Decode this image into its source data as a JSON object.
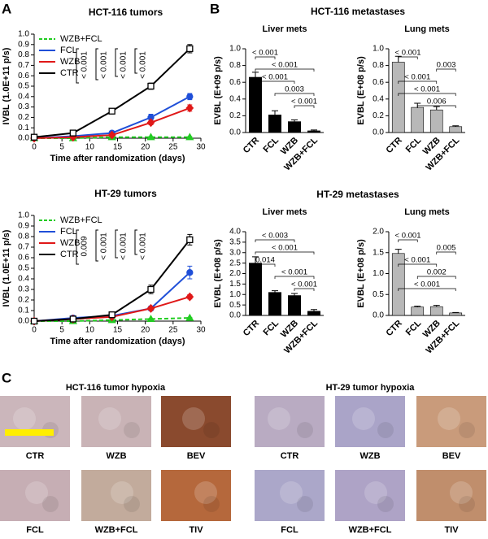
{
  "panel_labels": [
    "A",
    "B",
    "C"
  ],
  "section_titles": [
    "HCT-116 metastases",
    "HT-29 metastases"
  ],
  "chart_data": [
    {
      "type": "line",
      "title": "HCT-116 tumors",
      "xlabel": "Time after randomization (days)",
      "ylabel": "IVBL (1.0E+11 p/s)",
      "x": [
        0,
        7,
        14,
        21,
        28
      ],
      "xlim": [
        0,
        30
      ],
      "xticks": [
        0,
        5,
        10,
        15,
        20,
        25,
        30
      ],
      "ylim": [
        0,
        1.0
      ],
      "yticks": [
        {
          "value": 0,
          "label": "0.0"
        },
        0.1,
        0.2,
        0.3,
        0.4,
        0.5,
        0.6,
        0.7,
        0.8,
        0.9,
        {
          "value": 1.0,
          "label": "1.0"
        }
      ],
      "series": [
        {
          "name": "WZB+FCL",
          "color": "#22cc22",
          "marker": "triangle",
          "dashed": true,
          "values": [
            0,
            0,
            0.01,
            0.01,
            0.01
          ],
          "errors": [
            0,
            0,
            0.005,
            0.005,
            0.005
          ]
        },
        {
          "name": "FCL",
          "color": "#1f4fd8",
          "marker": "circle",
          "values": [
            0,
            0.02,
            0.05,
            0.2,
            0.4
          ],
          "errors": [
            0,
            0.005,
            0.01,
            0.03,
            0.03
          ]
        },
        {
          "name": "WZB",
          "color": "#e01818",
          "marker": "diamond",
          "values": [
            0,
            0.01,
            0.03,
            0.15,
            0.29
          ],
          "errors": [
            0,
            0.005,
            0.01,
            0.02,
            0.03
          ]
        },
        {
          "name": "CTR",
          "color": "#000000",
          "marker": "square",
          "hollow": true,
          "values": [
            0.01,
            0.05,
            0.26,
            0.5,
            0.86
          ],
          "errors": [
            0,
            0.01,
            0.02,
            0.03,
            0.04
          ]
        }
      ],
      "annotations": [
        "< 0.001",
        "< 0.001",
        "< 0.001",
        "< 0.001"
      ]
    },
    {
      "type": "line",
      "title": "HT-29 tumors",
      "xlabel": "Time after randomization (days)",
      "ylabel": "IVBL (1.0E+11 p/s)",
      "x": [
        0,
        7,
        14,
        21,
        28
      ],
      "xlim": [
        0,
        30
      ],
      "xticks": [
        0,
        5,
        10,
        15,
        20,
        25,
        30
      ],
      "ylim": [
        0,
        1.0
      ],
      "yticks": [
        {
          "value": 0,
          "label": "0.0"
        },
        0.1,
        0.2,
        0.3,
        0.4,
        0.5,
        0.6,
        0.7,
        0.8,
        0.9,
        {
          "value": 1.0,
          "label": "1.0"
        }
      ],
      "series": [
        {
          "name": "WZB+FCL",
          "color": "#22cc22",
          "marker": "triangle",
          "dashed": true,
          "values": [
            0,
            0,
            0.01,
            0.02,
            0.03
          ],
          "errors": [
            0,
            0,
            0.005,
            0.005,
            0.005
          ]
        },
        {
          "name": "FCL",
          "color": "#1f4fd8",
          "marker": "circle",
          "values": [
            0,
            0.03,
            0.05,
            0.12,
            0.46
          ],
          "errors": [
            0,
            0.005,
            0.01,
            0.02,
            0.06
          ]
        },
        {
          "name": "WZB",
          "color": "#e01818",
          "marker": "diamond",
          "values": [
            0,
            0.02,
            0.04,
            0.12,
            0.23
          ],
          "errors": [
            0,
            0.005,
            0.01,
            0.01,
            0.02
          ]
        },
        {
          "name": "CTR",
          "color": "#000000",
          "marker": "square",
          "hollow": true,
          "values": [
            0,
            0.02,
            0.06,
            0.3,
            0.77
          ],
          "errors": [
            0,
            0.005,
            0.01,
            0.04,
            0.05
          ]
        }
      ],
      "annotations": [
        "0.009",
        "< 0.001",
        "< 0.001",
        "< 0.001"
      ]
    },
    {
      "type": "bar",
      "title": "Liver mets",
      "ylabel": "EVBL (E+09 p/s)",
      "color": "#000000",
      "categories": [
        "CTR",
        "FCL",
        "WZB",
        "WZB+FCL"
      ],
      "values": [
        0.66,
        0.21,
        0.13,
        0.02
      ],
      "errors": [
        0.06,
        0.05,
        0.02,
        0.01
      ],
      "ylim": [
        0,
        1.0
      ],
      "yticks": [
        {
          "value": 0,
          "label": "0.0"
        },
        0.2,
        0.4,
        0.6,
        0.8,
        {
          "value": 1.0,
          "label": "1.0"
        }
      ],
      "comparisons": [
        {
          "label": "< 0.001",
          "between": [
            "CTR",
            "FCL"
          ]
        },
        {
          "label": "< 0.001",
          "between": [
            "CTR",
            "WZB+FCL"
          ]
        },
        {
          "label": "< 0.001",
          "between": [
            "CTR",
            "WZB"
          ]
        },
        {
          "label": "0.003",
          "between": [
            "FCL",
            "WZB+FCL"
          ]
        },
        {
          "label": "< 0.001",
          "between": [
            "WZB",
            "WZB+FCL"
          ]
        }
      ]
    },
    {
      "type": "bar",
      "title": "Lung mets",
      "ylabel": "EVBL (E+08 p/s)",
      "color": "#b8b8b8",
      "categories": [
        "CTR",
        "FCL",
        "WZB",
        "WZB+FCL"
      ],
      "values": [
        0.84,
        0.3,
        0.27,
        0.07
      ],
      "errors": [
        0.07,
        0.05,
        0.04,
        0.01
      ],
      "ylim": [
        0,
        1.0
      ],
      "yticks": [
        {
          "value": 0,
          "label": "0.0"
        },
        0.2,
        0.4,
        0.6,
        0.8,
        {
          "value": 1.0,
          "label": "1.0"
        }
      ],
      "comparisons": [
        {
          "label": "< 0.001",
          "between": [
            "CTR",
            "FCL"
          ]
        },
        {
          "label": "0.003",
          "between": [
            "WZB",
            "WZB+FCL"
          ]
        },
        {
          "label": "< 0.001",
          "between": [
            "CTR",
            "WZB"
          ]
        },
        {
          "label": "< 0.001",
          "between": [
            "CTR",
            "WZB+FCL"
          ]
        },
        {
          "label": "0.006",
          "between": [
            "FCL",
            "WZB+FCL"
          ]
        }
      ]
    },
    {
      "type": "bar",
      "title": "Liver mets",
      "ylabel": "EVBL (E+08 p/s)",
      "color": "#000000",
      "categories": [
        "CTR",
        "FCL",
        "WZB",
        "WZB+FCL"
      ],
      "values": [
        2.5,
        1.1,
        0.95,
        0.2
      ],
      "errors": [
        0.3,
        0.08,
        0.1,
        0.08
      ],
      "ylim": [
        0,
        4.0
      ],
      "yticks": [
        {
          "value": 0,
          "label": "0.0"
        },
        0.5,
        {
          "value": 1,
          "label": "1.0"
        },
        1.5,
        {
          "value": 2,
          "label": "2.0"
        },
        2.5,
        {
          "value": 3,
          "label": "3.0"
        },
        3.5,
        {
          "value": 4,
          "label": "4.0"
        }
      ],
      "comparisons": [
        {
          "label": "< 0.003",
          "between": [
            "CTR",
            "WZB"
          ]
        },
        {
          "label": "< 0.001",
          "between": [
            "CTR",
            "WZB+FCL"
          ]
        },
        {
          "label": "0.014",
          "between": [
            "CTR",
            "FCL"
          ]
        },
        {
          "label": "< 0.001",
          "between": [
            "FCL",
            "WZB+FCL"
          ]
        },
        {
          "label": "< 0.001",
          "between": [
            "WZB",
            "WZB+FCL"
          ]
        }
      ]
    },
    {
      "type": "bar",
      "title": "Lung mets",
      "ylabel": "EVBL (E+08 p/s)",
      "color": "#b8b8b8",
      "categories": [
        "CTR",
        "FCL",
        "WZB",
        "WZB+FCL"
      ],
      "values": [
        1.48,
        0.2,
        0.21,
        0.06
      ],
      "errors": [
        0.1,
        0.02,
        0.03,
        0.01
      ],
      "ylim": [
        0,
        2.0
      ],
      "yticks": [
        {
          "value": 0,
          "label": "0.0"
        },
        0.5,
        {
          "value": 1,
          "label": "1.0"
        },
        1.5,
        {
          "value": 2,
          "label": "2.0"
        }
      ],
      "comparisons": [
        {
          "label": "< 0.001",
          "between": [
            "CTR",
            "FCL"
          ]
        },
        {
          "label": "0.005",
          "between": [
            "WZB",
            "WZB+FCL"
          ]
        },
        {
          "label": "< 0.001",
          "between": [
            "CTR",
            "WZB"
          ]
        },
        {
          "label": "0.002",
          "between": [
            "FCL",
            "WZB+FCL"
          ]
        },
        {
          "label": "< 0.001",
          "between": [
            "CTR",
            "WZB+FCL"
          ]
        }
      ]
    }
  ],
  "panel_c": [
    {
      "title": "HCT-116 tumor hypoxia",
      "images": [
        "CTR",
        "WZB",
        "BEV",
        "FCL",
        "WZB+FCL",
        "TIV"
      ]
    },
    {
      "title": "HT-29 tumor hypoxia",
      "images": [
        "CTR",
        "WZB",
        "BEV",
        "FCL",
        "WZB+FCL",
        "TIV"
      ]
    }
  ]
}
